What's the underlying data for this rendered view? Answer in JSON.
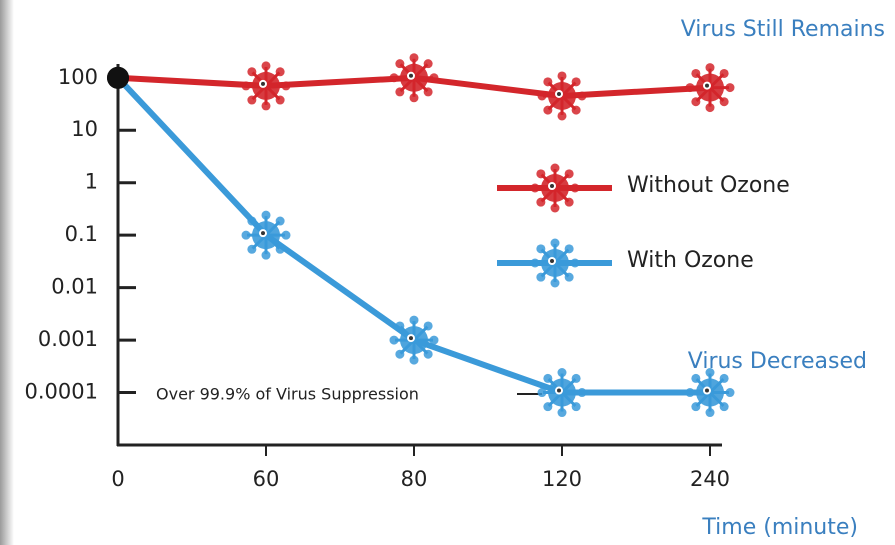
{
  "chart_data": {
    "type": "line",
    "categories": [
      "0",
      "60",
      "80",
      "120",
      "240"
    ],
    "series": [
      {
        "name": "Without Ozone",
        "color": "#d3262b",
        "values": [
          100,
          70,
          100,
          45,
          65
        ]
      },
      {
        "name": "With Ozone",
        "color": "#3b9ad9",
        "values": [
          100,
          0.1,
          0.001,
          0.0001,
          0.0001
        ]
      }
    ],
    "ylim": [
      1e-05,
      200
    ],
    "yticks": [
      100,
      10,
      1,
      0.1,
      0.01,
      0.001,
      0.0001
    ],
    "log_scale_y": true,
    "xlabel": "Time (minute)",
    "annotations": [
      "Virus Still Remains",
      "Virus Decreased",
      "Over 99.9% of Virus Suppression"
    ],
    "legend": "right"
  }
}
